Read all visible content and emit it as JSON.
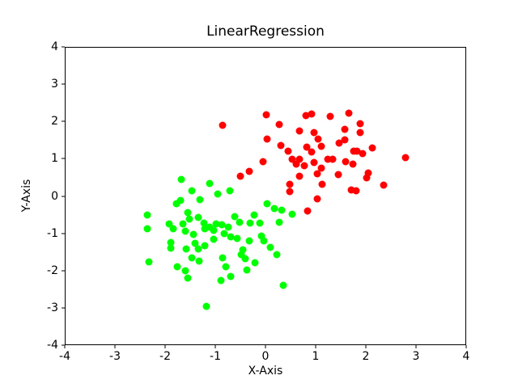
{
  "figure": {
    "background_color": "#ffffff",
    "spine_color": "#000000",
    "text_color": "#000000"
  },
  "chart_data": {
    "type": "scatter",
    "title": "LinearRegression",
    "xlabel": "X-Axis",
    "ylabel": "Y-Axis",
    "xlim": [
      -4,
      4
    ],
    "ylim": [
      -4,
      4
    ],
    "xticks": [
      -4,
      -3,
      -2,
      -1,
      0,
      1,
      2,
      3,
      4
    ],
    "yticks": [
      -4,
      -3,
      -2,
      -1,
      0,
      1,
      2,
      3,
      4
    ],
    "grid": false,
    "legend": null,
    "marker": "circle",
    "marker_size_px": 9,
    "series": [
      {
        "name": "red-cluster",
        "color": "#ff0000",
        "points": [
          [
            -0.86,
            1.9
          ],
          [
            0.02,
            2.19
          ],
          [
            0.27,
            1.93
          ],
          [
            0.81,
            2.17
          ],
          [
            0.92,
            2.21
          ],
          [
            1.29,
            2.15
          ],
          [
            1.67,
            2.24
          ],
          [
            1.89,
            1.95
          ],
          [
            1.89,
            1.72
          ],
          [
            0.68,
            1.75
          ],
          [
            0.97,
            1.72
          ],
          [
            0.04,
            1.54
          ],
          [
            0.3,
            1.37
          ],
          [
            0.46,
            1.2
          ],
          [
            1.05,
            1.54
          ],
          [
            1.11,
            1.33
          ],
          [
            0.82,
            1.31
          ],
          [
            0.93,
            1.19
          ],
          [
            1.58,
            1.79
          ],
          [
            1.47,
            1.43
          ],
          [
            1.58,
            1.52
          ],
          [
            2.13,
            1.29
          ],
          [
            1.83,
            1.2
          ],
          [
            1.94,
            1.15
          ],
          [
            2.8,
            1.04
          ],
          [
            0.54,
            0.99
          ],
          [
            0.68,
            0.99
          ],
          [
            0.62,
            0.87
          ],
          [
            0.77,
            0.81
          ],
          [
            0.97,
            0.9
          ],
          [
            1.11,
            0.76
          ],
          [
            1.24,
            0.99
          ],
          [
            1.35,
            0.99
          ],
          [
            1.6,
            0.93
          ],
          [
            1.77,
            1.22
          ],
          [
            1.75,
            0.86
          ],
          [
            -0.05,
            0.92
          ],
          [
            -0.32,
            0.67
          ],
          [
            -0.51,
            0.53
          ],
          [
            0.68,
            0.53
          ],
          [
            1.03,
            0.6
          ],
          [
            0.49,
            0.31
          ],
          [
            0.49,
            0.13
          ],
          [
            1.13,
            0.31
          ],
          [
            1.45,
            0.57
          ],
          [
            2.06,
            0.63
          ],
          [
            2.03,
            0.49
          ],
          [
            1.82,
            0.15
          ],
          [
            2.37,
            0.29
          ],
          [
            1.72,
            0.17
          ],
          [
            1.03,
            -0.08
          ],
          [
            0.85,
            -0.4
          ]
        ]
      },
      {
        "name": "green-cluster",
        "color": "#00ff00",
        "points": [
          [
            -1.68,
            0.44
          ],
          [
            -1.47,
            0.14
          ],
          [
            -1.11,
            0.33
          ],
          [
            -0.95,
            0.05
          ],
          [
            -0.72,
            0.14
          ],
          [
            -1.31,
            -0.1
          ],
          [
            -1.78,
            -0.21
          ],
          [
            -1.7,
            -0.12
          ],
          [
            -1.55,
            -0.45
          ],
          [
            -1.53,
            -0.62
          ],
          [
            -2.36,
            -0.52
          ],
          [
            -2.36,
            -0.89
          ],
          [
            -1.92,
            -0.75
          ],
          [
            -1.85,
            -0.89
          ],
          [
            -1.65,
            -0.75
          ],
          [
            -1.61,
            -0.95
          ],
          [
            -1.44,
            -1.04
          ],
          [
            -1.35,
            -0.58
          ],
          [
            -1.23,
            -0.72
          ],
          [
            -1.22,
            -0.88
          ],
          [
            -1.11,
            -0.83
          ],
          [
            -1.03,
            -0.92
          ],
          [
            -0.98,
            -0.76
          ],
          [
            -0.88,
            -0.78
          ],
          [
            -0.74,
            -0.83
          ],
          [
            -0.82,
            -1.01
          ],
          [
            -0.7,
            -1.09
          ],
          [
            -1.03,
            -1.17
          ],
          [
            -1.21,
            -1.34
          ],
          [
            -1.41,
            -1.28
          ],
          [
            -1.34,
            -1.43
          ],
          [
            -1.58,
            -1.43
          ],
          [
            -1.9,
            -1.25
          ],
          [
            -1.9,
            -1.41
          ],
          [
            -2.34,
            -1.77
          ],
          [
            -1.77,
            -1.9
          ],
          [
            -1.6,
            -2.01
          ],
          [
            -1.48,
            -1.67
          ],
          [
            -1.32,
            -1.75
          ],
          [
            -0.86,
            -1.66
          ],
          [
            -0.79,
            -1.9
          ],
          [
            -1.55,
            -2.22
          ],
          [
            -0.89,
            -2.27
          ],
          [
            -0.7,
            -2.17
          ],
          [
            -1.19,
            -2.97
          ],
          [
            0.35,
            -2.4
          ],
          [
            -0.62,
            -0.56
          ],
          [
            -0.52,
            -0.7
          ],
          [
            -0.31,
            -0.72
          ],
          [
            -0.12,
            -0.74
          ],
          [
            -0.23,
            -0.52
          ],
          [
            0.03,
            -0.21
          ],
          [
            0.18,
            -0.34
          ],
          [
            0.32,
            -0.38
          ],
          [
            0.54,
            -0.49
          ],
          [
            0.27,
            -0.7
          ],
          [
            -0.08,
            -1.07
          ],
          [
            -0.03,
            -1.21
          ],
          [
            -0.32,
            -1.2
          ],
          [
            -0.57,
            -1.14
          ],
          [
            0.09,
            -1.39
          ],
          [
            0.22,
            -1.57
          ],
          [
            -0.49,
            -1.57
          ],
          [
            -0.41,
            -1.68
          ],
          [
            -0.21,
            -1.79
          ],
          [
            -0.37,
            -1.99
          ],
          [
            -0.45,
            -1.46
          ]
        ]
      }
    ]
  }
}
